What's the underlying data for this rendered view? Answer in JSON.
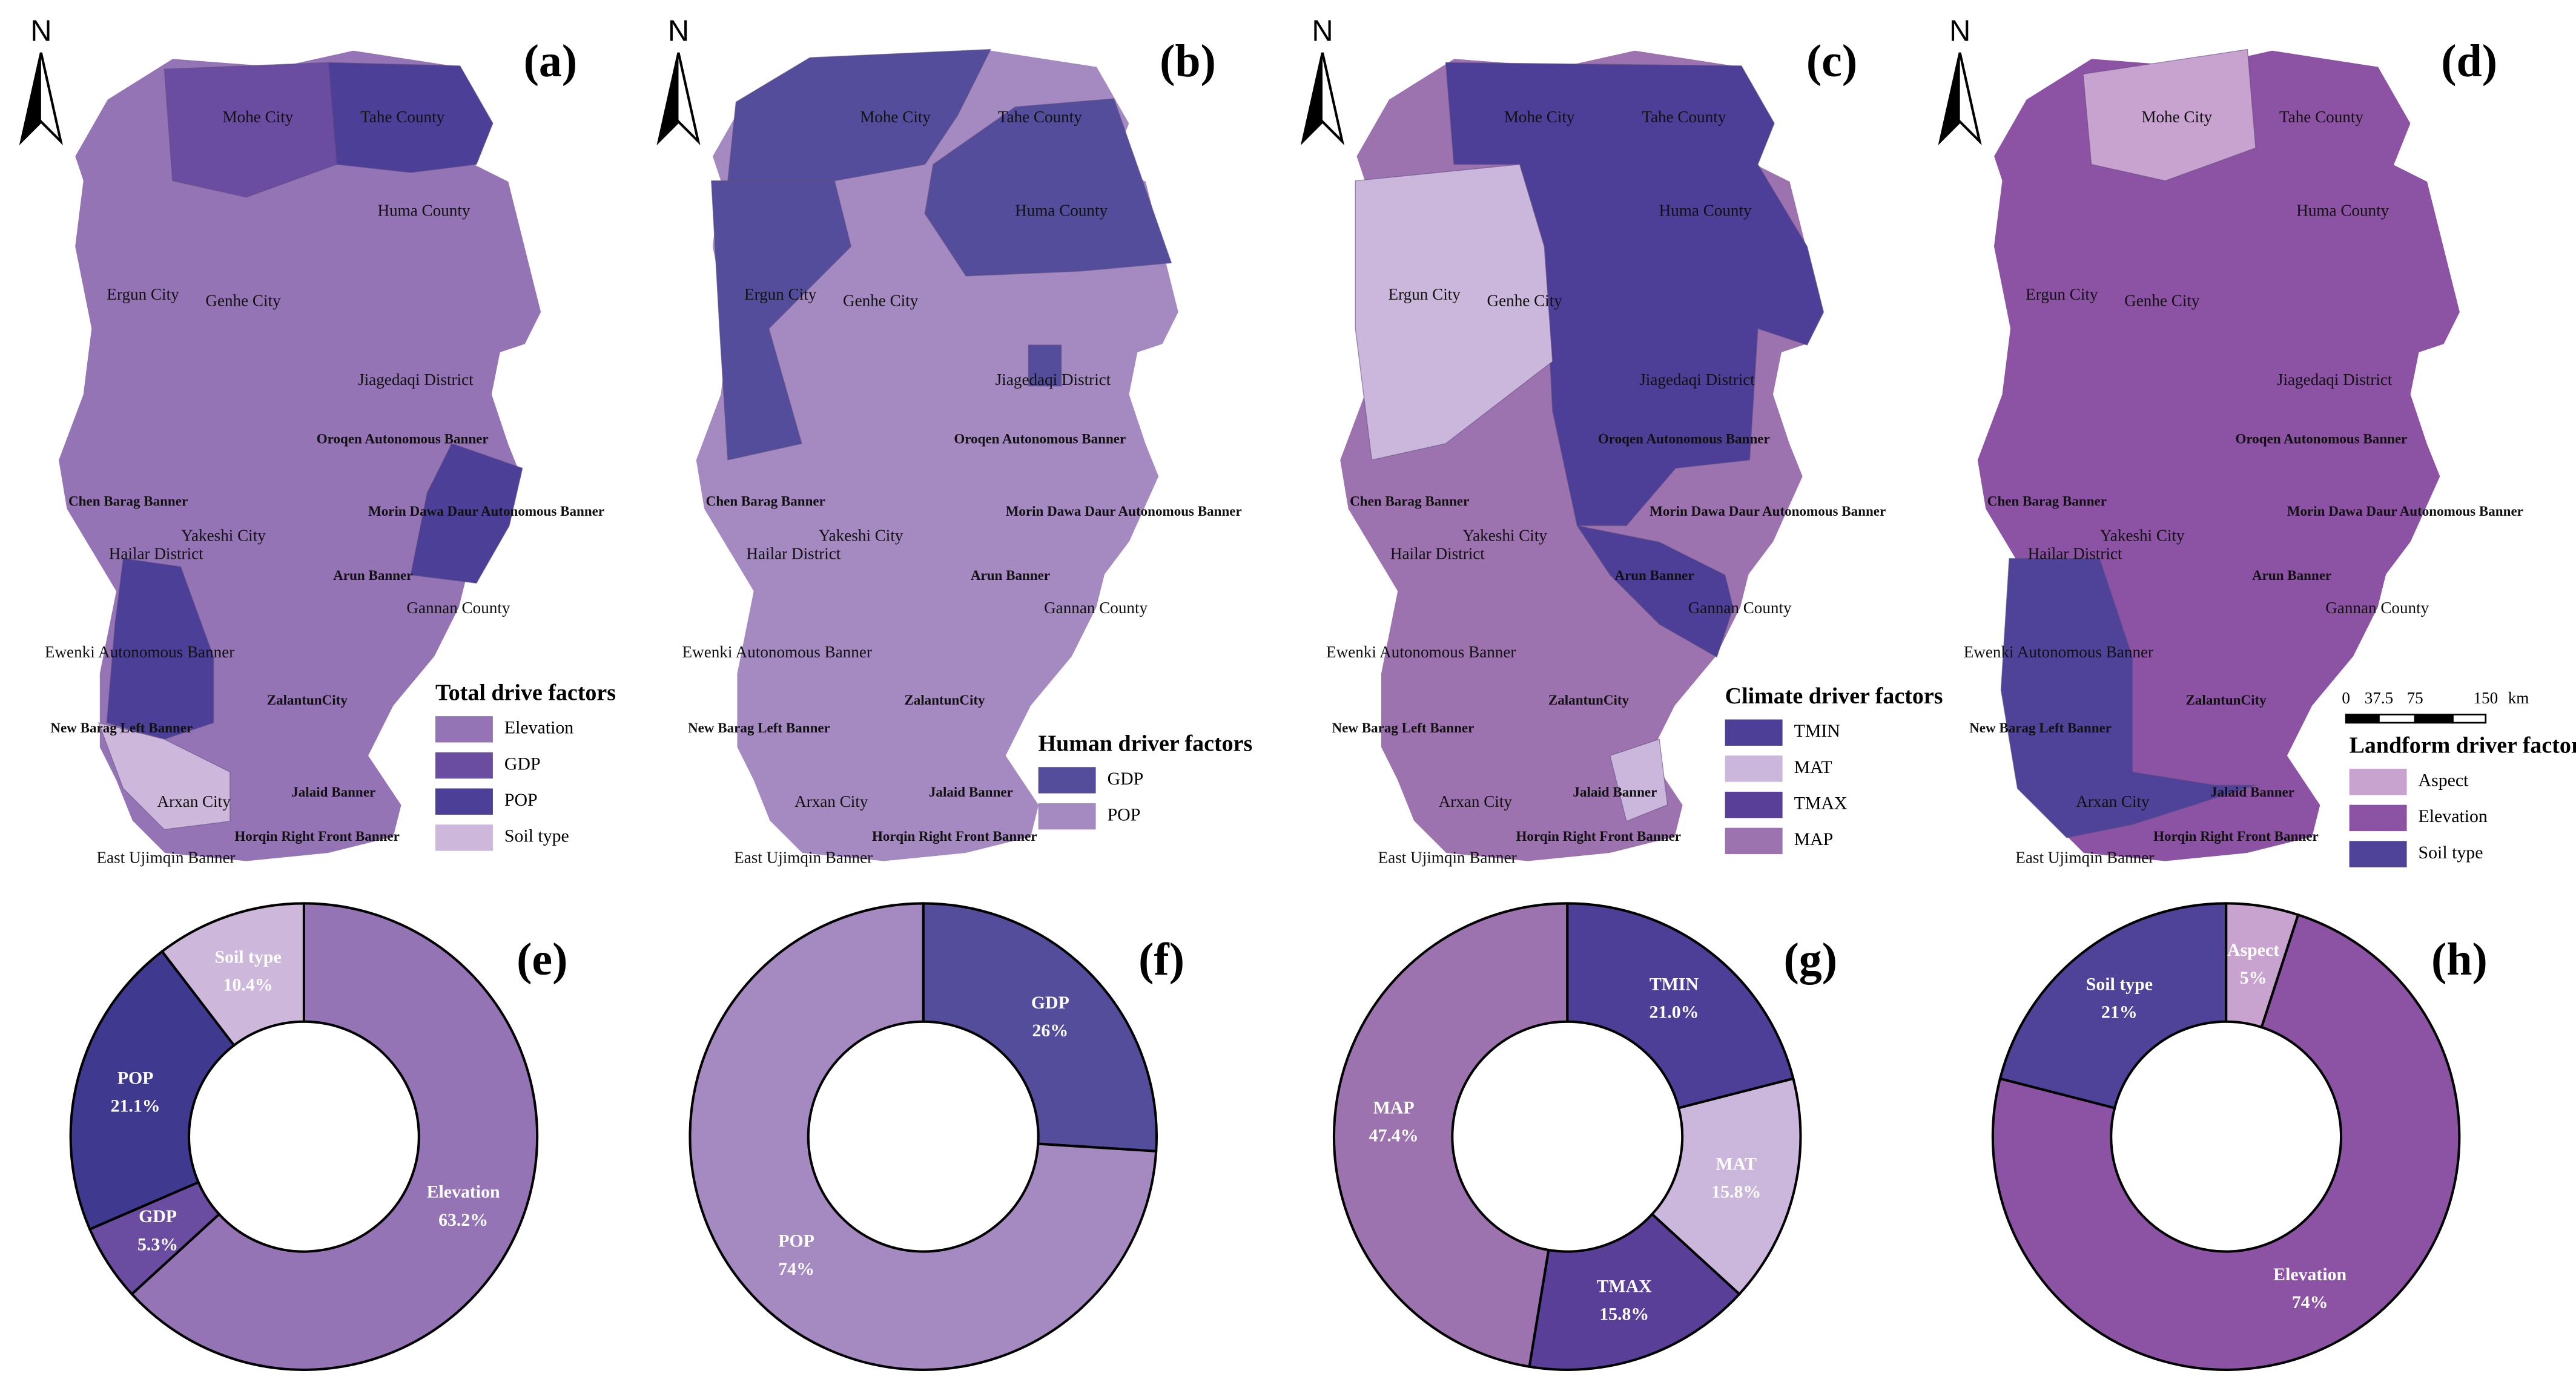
{
  "maps": [
    {
      "letter": "(a)",
      "north": "N",
      "regions": [
        "Mohe City",
        "Tahe County",
        "Huma County",
        "Ergun City",
        "Genhe City",
        "Jiagedaqi District",
        "Oroqen Autonomous Banner",
        "Chen Barag Banner",
        "Morin Dawa Daur Autonomous Banner",
        "Yakeshi City",
        "Hailar District",
        "Arun Banner",
        "Gannan County",
        "Ewenki Autonomous Banner",
        "ZalantunCity",
        "New Barag Left Banner",
        "Jalaid Banner",
        "Arxan City",
        "Horqin Right Front Banner",
        "East Ujimqin Banner"
      ],
      "legend": {
        "title": "Total drive factors",
        "items": [
          {
            "name": "Elevation",
            "color": "#9474b4"
          },
          {
            "name": "GDP",
            "color": "#6a4ca0"
          },
          {
            "name": "POP",
            "color": "#4c3f97"
          },
          {
            "name": "Soil type",
            "color": "#cdb8dc"
          }
        ]
      }
    },
    {
      "letter": "(b)",
      "north": "N",
      "regions": [
        "Mohe City",
        "Tahe County",
        "Huma County",
        "Ergun City",
        "Genhe City",
        "Jiagedaqi District",
        "Oroqen Autonomous Banner",
        "Chen Barag Banner",
        "Morin Dawa Daur Autonomous Banner",
        "Yakeshi City",
        "Hailar District",
        "Arun Banner",
        "Gannan County",
        "Ewenki Autonomous Banner",
        "ZalantunCity",
        "New Barag Left Banner",
        "Jalaid Banner",
        "Arxan City",
        "Horqin Right Front Banner",
        "East Ujimqin Banner"
      ],
      "legend": {
        "title": "Human driver factors",
        "items": [
          {
            "name": "GDP",
            "color": "#534d9c"
          },
          {
            "name": "POP",
            "color": "#a48ac0"
          }
        ]
      }
    },
    {
      "letter": "(c)",
      "north": "N",
      "regions": [
        "Mohe City",
        "Tahe County",
        "Huma County",
        "Ergun City",
        "Genhe City",
        "Jiagedaqi District",
        "Oroqen Autonomous Banner",
        "Chen Barag Banner",
        "Morin Dawa Daur Autonomous Banner",
        "Yakeshi City",
        "Hailar District",
        "Arun Banner",
        "Gannan County",
        "Ewenki Autonomous Banner",
        "ZalantunCity",
        "New Barag Left Banner",
        "Jalaid Banner",
        "Arxan City",
        "Horqin Right Front Banner",
        "East Ujimqin Banner"
      ],
      "legend": {
        "title": "Climate driver factors",
        "items": [
          {
            "name": "TMIN",
            "color": "#4d3f97"
          },
          {
            "name": "MAT",
            "color": "#cbb7db"
          },
          {
            "name": "TMAX",
            "color": "#5a3f99"
          },
          {
            "name": "MAP",
            "color": "#9c73ae"
          }
        ]
      }
    },
    {
      "letter": "(d)",
      "north": "N",
      "regions": [
        "Mohe City",
        "Tahe County",
        "Huma County",
        "Ergun City",
        "Genhe City",
        "Jiagedaqi District",
        "Oroqen Autonomous Banner",
        "Chen Barag Banner",
        "Morin Dawa Daur Autonomous Banner",
        "Yakeshi City",
        "Hailar District",
        "Arun Banner",
        "Gannan County",
        "Ewenki Autonomous Banner",
        "ZalantunCity",
        "New Barag Left Banner",
        "Jalaid Banner",
        "Arxan City",
        "Horqin Right Front Banner",
        "East Ujimqin Banner"
      ],
      "legend": {
        "title": "Landform driver factors",
        "items": [
          {
            "name": "Aspect",
            "color": "#c8a3d0"
          },
          {
            "name": "Elevation",
            "color": "#8c52a3"
          },
          {
            "name": "Soil type",
            "color": "#4e4399"
          }
        ]
      },
      "scale_bar": [
        "0",
        "37.5",
        "75",
        "150",
        "km"
      ]
    }
  ],
  "chart_data": [
    {
      "type": "donut",
      "title": "(e)",
      "categories": [
        "Elevation",
        "GDP",
        "POP",
        "Soil type"
      ],
      "values": [
        63.2,
        5.3,
        21.1,
        10.4
      ],
      "value_labels": [
        "63.2%",
        "5.3%",
        "21.1%",
        "10.4%"
      ],
      "colors": [
        "#9474b4",
        "#6a4ca0",
        "#3f3a8f",
        "#cdb8dc"
      ]
    },
    {
      "type": "donut",
      "title": "(f)",
      "categories": [
        "GDP",
        "POP"
      ],
      "values": [
        26,
        74
      ],
      "value_labels": [
        "26%",
        "74%"
      ],
      "colors": [
        "#534d9c",
        "#a48ac0"
      ]
    },
    {
      "type": "donut",
      "title": "(g)",
      "categories": [
        "TMIN",
        "MAT",
        "TMAX",
        "MAP"
      ],
      "values": [
        21.0,
        15.8,
        15.8,
        47.4
      ],
      "value_labels": [
        "21.0%",
        "15.8%",
        "15.8%",
        "47.4%"
      ],
      "colors": [
        "#4d3f97",
        "#cbb7db",
        "#5a3f99",
        "#9c73ae"
      ]
    },
    {
      "type": "donut",
      "title": "(h)",
      "categories": [
        "Aspect",
        "Elevation",
        "Soil type"
      ],
      "values": [
        5,
        74,
        21
      ],
      "value_labels": [
        "5%",
        "74%",
        "21%"
      ],
      "colors": [
        "#c8a3d0",
        "#8c52a3",
        "#4e4399"
      ]
    }
  ]
}
